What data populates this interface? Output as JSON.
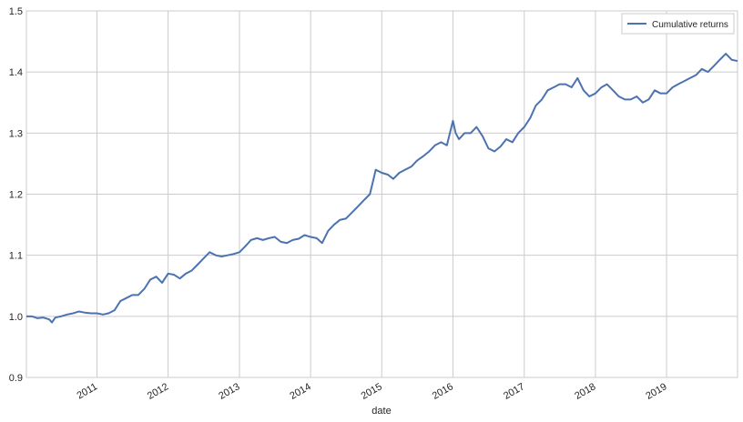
{
  "chart_data": {
    "type": "line",
    "title": "",
    "xlabel": "date",
    "ylabel": "",
    "xlim": [
      "2010-01-04",
      "2019-12-31"
    ],
    "ylim": [
      0.9,
      1.5
    ],
    "yticks": [
      0.9,
      1.0,
      1.1,
      1.2,
      1.3,
      1.4,
      1.5
    ],
    "ytick_labels": [
      "0.9",
      "1.0",
      "1.1",
      "1.2",
      "1.3",
      "1.4",
      "1.5"
    ],
    "xticks": [
      "2011-01-01",
      "2012-01-01",
      "2013-01-01",
      "2014-01-01",
      "2015-01-01",
      "2016-01-01",
      "2017-01-01",
      "2018-01-01",
      "2019-01-01"
    ],
    "xtick_labels": [
      "2011",
      "2012",
      "2013",
      "2014",
      "2015",
      "2016",
      "2017",
      "2018",
      "2019"
    ],
    "grid": true,
    "legend": {
      "position": "top-right",
      "entries": [
        "Cumulative returns"
      ]
    },
    "colors": {
      "line": "#4c72b0",
      "grid": "#cbcbcb",
      "text": "#262626"
    },
    "series": [
      {
        "name": "Cumulative returns",
        "x": [
          "2010-01-04",
          "2010-02-01",
          "2010-03-01",
          "2010-04-01",
          "2010-05-01",
          "2010-05-15",
          "2010-06-01",
          "2010-07-01",
          "2010-08-01",
          "2010-09-01",
          "2010-10-01",
          "2010-11-01",
          "2010-12-01",
          "2011-01-01",
          "2011-02-01",
          "2011-03-01",
          "2011-04-01",
          "2011-05-01",
          "2011-06-01",
          "2011-07-01",
          "2011-08-01",
          "2011-09-01",
          "2011-10-01",
          "2011-11-01",
          "2011-12-01",
          "2012-01-01",
          "2012-02-01",
          "2012-03-01",
          "2012-04-01",
          "2012-05-01",
          "2012-06-01",
          "2012-07-01",
          "2012-08-01",
          "2012-09-01",
          "2012-10-01",
          "2012-11-01",
          "2012-12-01",
          "2013-01-01",
          "2013-02-01",
          "2013-03-01",
          "2013-04-01",
          "2013-05-01",
          "2013-06-01",
          "2013-07-01",
          "2013-08-01",
          "2013-09-01",
          "2013-10-01",
          "2013-11-01",
          "2013-12-01",
          "2014-01-01",
          "2014-02-01",
          "2014-03-01",
          "2014-04-01",
          "2014-05-01",
          "2014-06-01",
          "2014-07-01",
          "2014-08-01",
          "2014-09-01",
          "2014-10-01",
          "2014-11-01",
          "2014-11-20",
          "2014-12-01",
          "2015-01-01",
          "2015-02-01",
          "2015-03-01",
          "2015-04-01",
          "2015-05-01",
          "2015-06-01",
          "2015-07-01",
          "2015-08-01",
          "2015-09-01",
          "2015-10-01",
          "2015-11-01",
          "2015-12-01",
          "2016-01-01",
          "2016-01-15",
          "2016-02-01",
          "2016-03-01",
          "2016-04-01",
          "2016-05-01",
          "2016-06-01",
          "2016-07-01",
          "2016-08-01",
          "2016-09-01",
          "2016-10-01",
          "2016-11-01",
          "2016-12-01",
          "2017-01-01",
          "2017-02-01",
          "2017-03-01",
          "2017-04-01",
          "2017-05-01",
          "2017-06-01",
          "2017-07-01",
          "2017-08-01",
          "2017-09-01",
          "2017-10-01",
          "2017-11-01",
          "2017-12-01",
          "2018-01-01",
          "2018-02-01",
          "2018-03-01",
          "2018-04-01",
          "2018-05-01",
          "2018-06-01",
          "2018-07-01",
          "2018-08-01",
          "2018-09-01",
          "2018-10-01",
          "2018-11-01",
          "2018-12-01",
          "2019-01-01",
          "2019-02-01",
          "2019-03-01",
          "2019-04-01",
          "2019-05-01",
          "2019-06-01",
          "2019-07-01",
          "2019-08-01",
          "2019-09-01",
          "2019-10-01",
          "2019-11-01",
          "2019-12-01",
          "2019-12-31"
        ],
        "values": [
          1.0,
          1.0,
          0.997,
          0.998,
          0.995,
          0.99,
          0.998,
          1.0,
          1.003,
          1.005,
          1.008,
          1.006,
          1.005,
          1.005,
          1.003,
          1.005,
          1.01,
          1.025,
          1.03,
          1.035,
          1.035,
          1.045,
          1.06,
          1.065,
          1.055,
          1.07,
          1.068,
          1.062,
          1.07,
          1.075,
          1.085,
          1.095,
          1.105,
          1.1,
          1.098,
          1.1,
          1.102,
          1.105,
          1.115,
          1.125,
          1.128,
          1.125,
          1.128,
          1.13,
          1.122,
          1.12,
          1.125,
          1.127,
          1.133,
          1.13,
          1.128,
          1.12,
          1.14,
          1.15,
          1.158,
          1.16,
          1.17,
          1.18,
          1.19,
          1.2,
          1.225,
          1.24,
          1.235,
          1.232,
          1.225,
          1.235,
          1.24,
          1.245,
          1.255,
          1.262,
          1.27,
          1.28,
          1.285,
          1.28,
          1.32,
          1.3,
          1.29,
          1.3,
          1.3,
          1.31,
          1.295,
          1.275,
          1.27,
          1.278,
          1.29,
          1.285,
          1.3,
          1.31,
          1.325,
          1.345,
          1.355,
          1.37,
          1.375,
          1.38,
          1.38,
          1.375,
          1.39,
          1.37,
          1.36,
          1.365,
          1.375,
          1.38,
          1.37,
          1.36,
          1.355,
          1.355,
          1.36,
          1.35,
          1.355,
          1.37,
          1.365,
          1.365,
          1.375,
          1.38,
          1.385,
          1.39,
          1.395,
          1.405,
          1.4,
          1.41,
          1.42,
          1.43,
          1.42,
          1.418
        ]
      }
    ]
  }
}
